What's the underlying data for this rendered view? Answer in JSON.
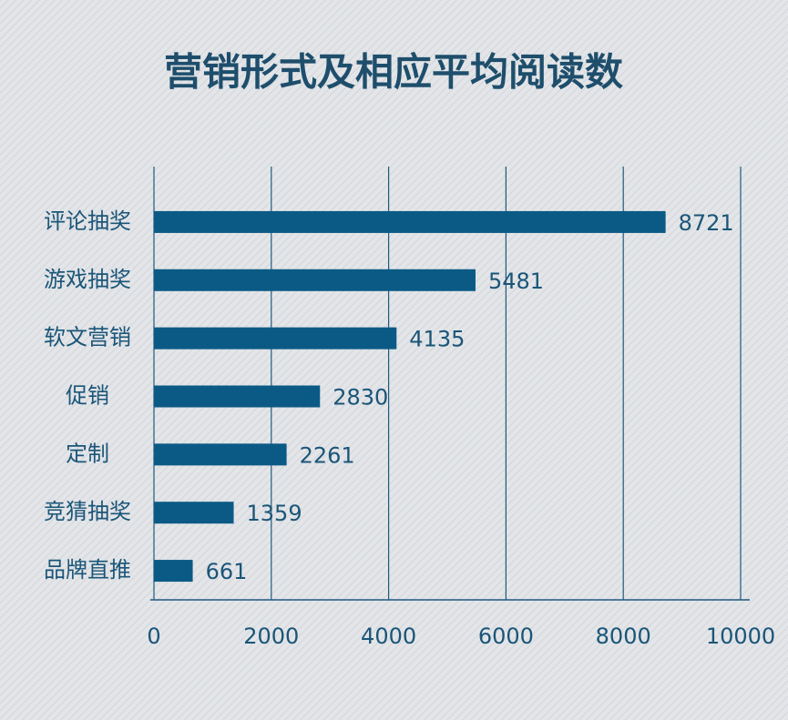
{
  "chart_data": {
    "type": "bar",
    "orientation": "horizontal",
    "title": "营销形式及相应平均阅读数",
    "categories": [
      "评论抽奖",
      "游戏抽奖",
      "软文营销",
      "促销",
      "定制",
      "竞猜抽奖",
      "品牌直推"
    ],
    "values": [
      8721,
      5481,
      4135,
      2830,
      2261,
      1359,
      661
    ],
    "color": "#0b5a85",
    "xlim": [
      0,
      10000
    ],
    "xticks": [
      0,
      2000,
      4000,
      6000,
      8000,
      10000
    ],
    "grid": true
  }
}
